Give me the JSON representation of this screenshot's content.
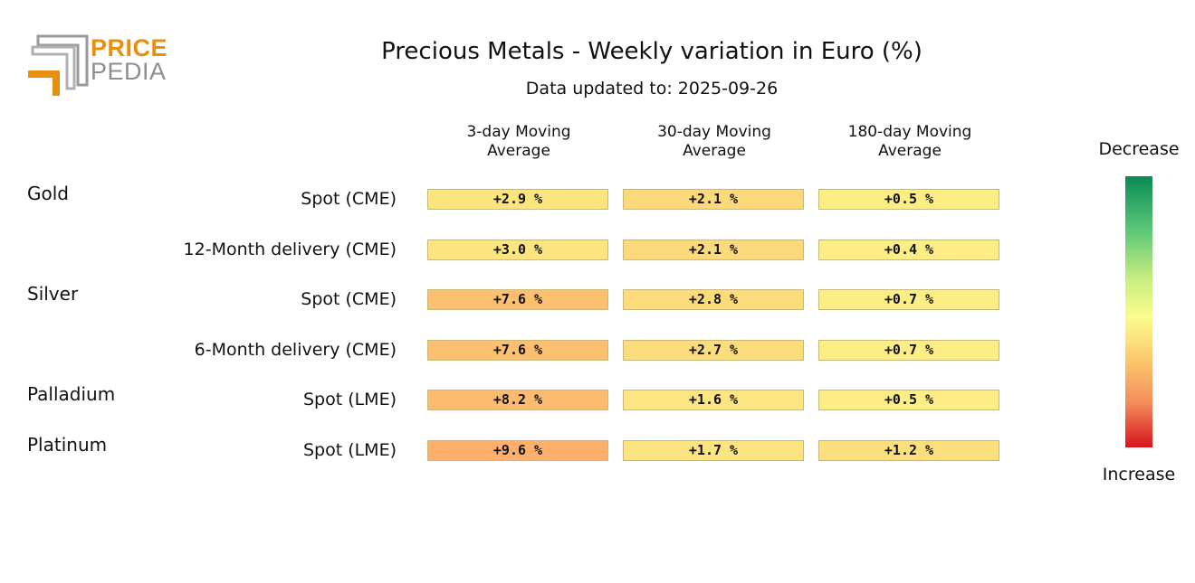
{
  "logo": {
    "line1": "PRICE",
    "line2": "PEDIA"
  },
  "chart_data": {
    "type": "heatmap",
    "title": "Precious Metals - Weekly variation in Euro (%)",
    "subtitle": "Data updated to: 2025-09-26",
    "columns": [
      "3-day Moving\nAverage",
      "30-day Moving\nAverage",
      "180-day Moving\nAverage"
    ],
    "rows": [
      {
        "group": "Gold",
        "label": "Spot (CME)",
        "values": [
          2.9,
          2.1,
          0.5
        ],
        "texts": [
          "+2.9 %",
          "+2.1 %",
          "+0.5 %"
        ],
        "colors": [
          "#fce57e",
          "#fcd97a",
          "#fced84"
        ]
      },
      {
        "group": "",
        "label": "12-Month delivery (CME)",
        "values": [
          3.0,
          2.1,
          0.4
        ],
        "texts": [
          "+3.0 %",
          "+2.1 %",
          "+0.4 %"
        ],
        "colors": [
          "#fce47e",
          "#fcd97a",
          "#fcee84"
        ]
      },
      {
        "group": "Silver",
        "label": "Spot (CME)",
        "values": [
          7.6,
          2.8,
          0.7
        ],
        "texts": [
          "+7.6 %",
          "+2.8 %",
          "+0.7 %"
        ],
        "colors": [
          "#fcc070",
          "#fcdc7a",
          "#fced84"
        ]
      },
      {
        "group": "",
        "label": "6-Month delivery (CME)",
        "values": [
          7.6,
          2.7,
          0.7
        ],
        "texts": [
          "+7.6 %",
          "+2.7 %",
          "+0.7 %"
        ],
        "colors": [
          "#fcc070",
          "#fcdd7b",
          "#fced84"
        ]
      },
      {
        "group": "Palladium",
        "label": "Spot (LME)",
        "values": [
          8.2,
          1.6,
          0.5
        ],
        "texts": [
          "+8.2 %",
          "+1.6 %",
          "+0.5 %"
        ],
        "colors": [
          "#fcbb6e",
          "#fce681",
          "#fced84"
        ]
      },
      {
        "group": "Platinum",
        "label": "Spot (LME)",
        "values": [
          9.6,
          1.7,
          1.2
        ],
        "texts": [
          "+9.6 %",
          "+1.7 %",
          "+1.2 %"
        ],
        "colors": [
          "#fcb06c",
          "#fce580",
          "#fcdf7d"
        ]
      }
    ],
    "legend": {
      "top": "Decrease",
      "bottom": "Increase"
    }
  }
}
